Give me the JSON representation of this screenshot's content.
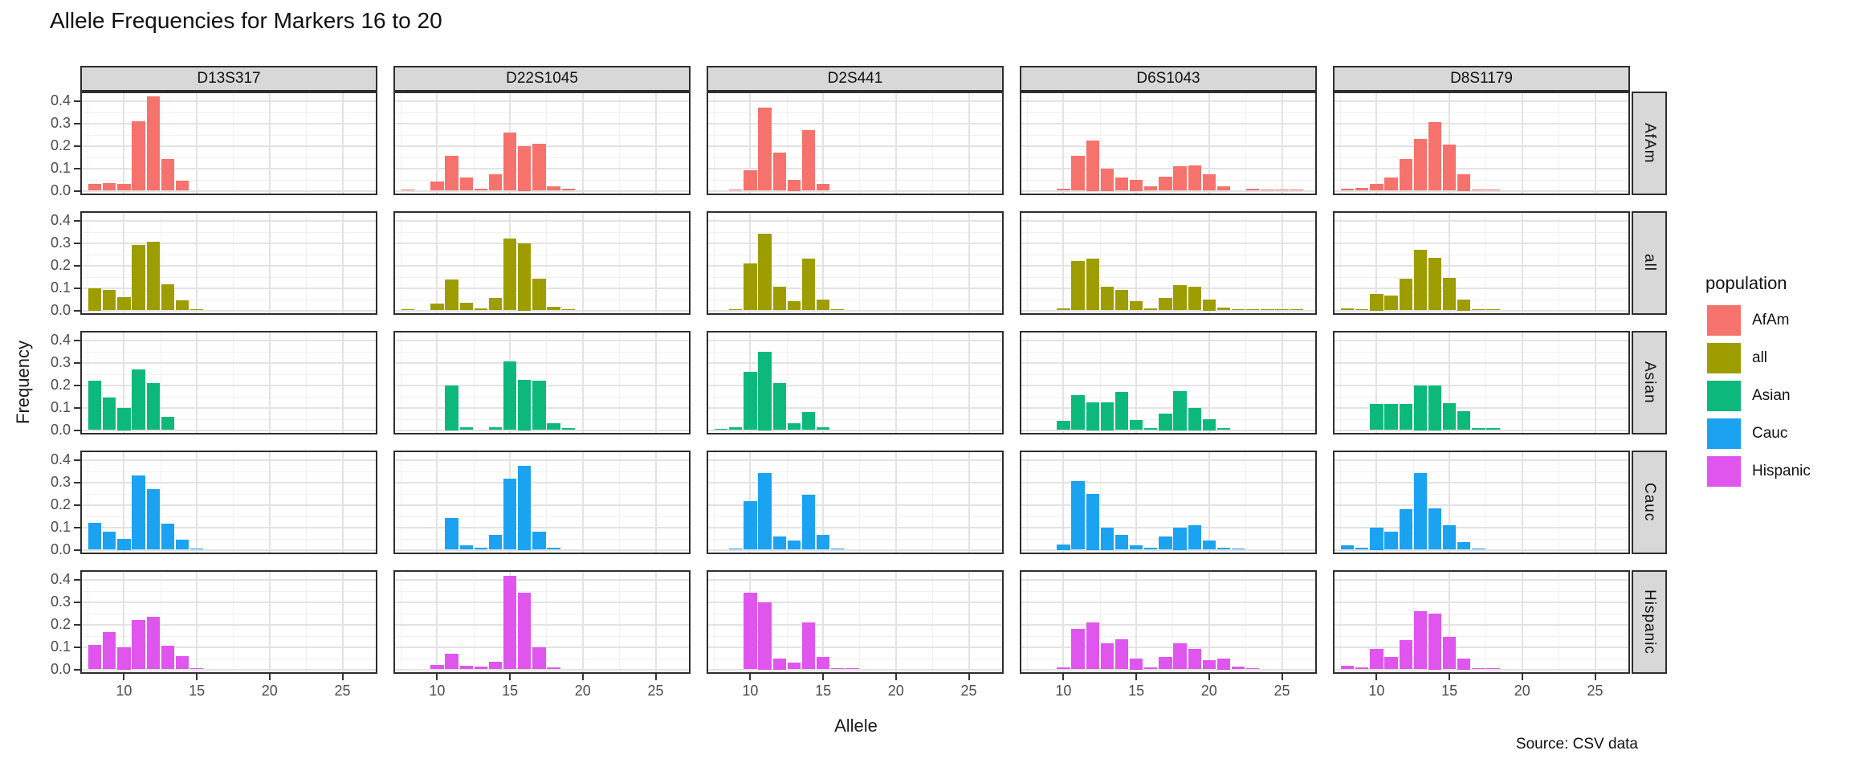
{
  "title": "Allele Frequencies for Markers 16 to 20",
  "source_note": "Source: CSV data",
  "axes": {
    "x_label": "Allele",
    "y_label": "Frequency",
    "x_tick_labels": [
      "10",
      "15",
      "20",
      "25"
    ],
    "y_tick_labels": [
      "0.0",
      "0.1",
      "0.2",
      "0.3",
      "0.4"
    ]
  },
  "legend": {
    "title": "population",
    "entries": [
      {
        "label": "AfAm",
        "color": "#F6726C"
      },
      {
        "label": "all",
        "color": "#9E9D00"
      },
      {
        "label": "Asian",
        "color": "#0DB97A"
      },
      {
        "label": "Cauc",
        "color": "#1BA3F2"
      },
      {
        "label": "Hispanic",
        "color": "#E055ED"
      }
    ]
  },
  "chart_data": {
    "type": "bar",
    "title": "Allele Frequencies for Markers 16 to 20",
    "xlabel": "Allele",
    "ylabel": "Frequency",
    "xlim": [
      7,
      27.4
    ],
    "ylim": [
      0,
      0.44
    ],
    "x_major_ticks": [
      10,
      15,
      20,
      25
    ],
    "x_minor_ticks": [
      7.5,
      12.5,
      17.5,
      22.5
    ],
    "y_major_ticks": [
      0,
      0.1,
      0.2,
      0.3,
      0.4
    ],
    "y_minor_ticks": [
      0.05,
      0.15,
      0.25,
      0.35
    ],
    "grid": true,
    "legend_position": "right",
    "facet_columns": [
      "D13S317",
      "D22S1045",
      "D2S441",
      "D6S1043",
      "D8S1179"
    ],
    "facet_rows": [
      "AfAm",
      "all",
      "Asian",
      "Cauc",
      "Hispanic"
    ],
    "facets": [
      {
        "marker": "D13S317",
        "population": "AfAm",
        "bars": [
          [
            8,
            0.03
          ],
          [
            9,
            0.033
          ],
          [
            10,
            0.03
          ],
          [
            11,
            0.31
          ],
          [
            12,
            0.42
          ],
          [
            13,
            0.14
          ],
          [
            14,
            0.045
          ]
        ]
      },
      {
        "marker": "D22S1045",
        "population": "AfAm",
        "bars": [
          [
            8,
            0.006
          ],
          [
            10,
            0.04
          ],
          [
            11,
            0.155
          ],
          [
            12,
            0.058
          ],
          [
            13,
            0.01
          ],
          [
            14,
            0.072
          ],
          [
            15,
            0.26
          ],
          [
            16,
            0.2
          ],
          [
            17,
            0.21
          ],
          [
            18,
            0.02
          ],
          [
            19,
            0.01
          ]
        ]
      },
      {
        "marker": "D2S441",
        "population": "AfAm",
        "bars": [
          [
            9,
            0.006
          ],
          [
            10,
            0.09
          ],
          [
            11,
            0.37
          ],
          [
            12,
            0.17
          ],
          [
            13,
            0.05
          ],
          [
            14,
            0.27
          ],
          [
            15,
            0.03
          ]
        ]
      },
      {
        "marker": "D6S1043",
        "population": "AfAm",
        "bars": [
          [
            10,
            0.008
          ],
          [
            11,
            0.155
          ],
          [
            12,
            0.225
          ],
          [
            13,
            0.1
          ],
          [
            14,
            0.06
          ],
          [
            15,
            0.05
          ],
          [
            16,
            0.02
          ],
          [
            17,
            0.062
          ],
          [
            18,
            0.108
          ],
          [
            19,
            0.114
          ],
          [
            20,
            0.073
          ],
          [
            21,
            0.02
          ],
          [
            23,
            0.008
          ],
          [
            24,
            0.005
          ],
          [
            25,
            0.004
          ],
          [
            26,
            0.004
          ]
        ]
      },
      {
        "marker": "D8S1179",
        "population": "AfAm",
        "bars": [
          [
            8,
            0.01
          ],
          [
            9,
            0.012
          ],
          [
            10,
            0.03
          ],
          [
            11,
            0.06
          ],
          [
            12,
            0.14
          ],
          [
            13,
            0.23
          ],
          [
            14,
            0.305
          ],
          [
            15,
            0.205
          ],
          [
            16,
            0.075
          ],
          [
            17,
            0.006
          ],
          [
            18,
            0.004
          ]
        ]
      },
      {
        "marker": "D13S317",
        "population": "all",
        "bars": [
          [
            8,
            0.1
          ],
          [
            9,
            0.09
          ],
          [
            10,
            0.06
          ],
          [
            11,
            0.29
          ],
          [
            12,
            0.305
          ],
          [
            13,
            0.115
          ],
          [
            14,
            0.045
          ],
          [
            15,
            0.004
          ]
        ]
      },
      {
        "marker": "D22S1045",
        "population": "all",
        "bars": [
          [
            8,
            0.004
          ],
          [
            10,
            0.03
          ],
          [
            11,
            0.138
          ],
          [
            12,
            0.035
          ],
          [
            13,
            0.01
          ],
          [
            14,
            0.055
          ],
          [
            15,
            0.32
          ],
          [
            16,
            0.3
          ],
          [
            17,
            0.14
          ],
          [
            18,
            0.015
          ],
          [
            19,
            0.007
          ]
        ]
      },
      {
        "marker": "D2S441",
        "population": "all",
        "bars": [
          [
            9,
            0.006
          ],
          [
            10,
            0.21
          ],
          [
            11,
            0.34
          ],
          [
            12,
            0.105
          ],
          [
            13,
            0.04
          ],
          [
            14,
            0.23
          ],
          [
            15,
            0.048
          ],
          [
            16,
            0.004
          ]
        ]
      },
      {
        "marker": "D6S1043",
        "population": "all",
        "bars": [
          [
            10,
            0.01
          ],
          [
            11,
            0.22
          ],
          [
            12,
            0.23
          ],
          [
            13,
            0.105
          ],
          [
            14,
            0.09
          ],
          [
            15,
            0.042
          ],
          [
            16,
            0.01
          ],
          [
            17,
            0.055
          ],
          [
            18,
            0.112
          ],
          [
            19,
            0.105
          ],
          [
            20,
            0.05
          ],
          [
            21,
            0.012
          ],
          [
            22,
            0.004
          ],
          [
            23,
            0.004
          ],
          [
            24,
            0.002
          ],
          [
            25,
            0.002
          ],
          [
            26,
            0.002
          ]
        ]
      },
      {
        "marker": "D8S1179",
        "population": "all",
        "bars": [
          [
            8,
            0.01
          ],
          [
            9,
            0.006
          ],
          [
            10,
            0.075
          ],
          [
            11,
            0.065
          ],
          [
            12,
            0.14
          ],
          [
            13,
            0.27
          ],
          [
            14,
            0.235
          ],
          [
            15,
            0.145
          ],
          [
            16,
            0.05
          ],
          [
            17,
            0.006
          ],
          [
            18,
            0.003
          ]
        ]
      },
      {
        "marker": "D13S317",
        "population": "Asian",
        "bars": [
          [
            8,
            0.22
          ],
          [
            9,
            0.145
          ],
          [
            10,
            0.1
          ],
          [
            11,
            0.27
          ],
          [
            12,
            0.21
          ],
          [
            13,
            0.06
          ]
        ]
      },
      {
        "marker": "D22S1045",
        "population": "Asian",
        "bars": [
          [
            11,
            0.2
          ],
          [
            12,
            0.012
          ],
          [
            14,
            0.012
          ],
          [
            15,
            0.305
          ],
          [
            16,
            0.225
          ],
          [
            17,
            0.22
          ],
          [
            18,
            0.032
          ],
          [
            19,
            0.01
          ]
        ]
      },
      {
        "marker": "D2S441",
        "population": "Asian",
        "bars": [
          [
            8,
            0.005
          ],
          [
            9,
            0.012
          ],
          [
            10,
            0.26
          ],
          [
            11,
            0.35
          ],
          [
            12,
            0.21
          ],
          [
            13,
            0.03
          ],
          [
            14,
            0.08
          ],
          [
            15,
            0.012
          ]
        ]
      },
      {
        "marker": "D6S1043",
        "population": "Asian",
        "bars": [
          [
            10,
            0.04
          ],
          [
            11,
            0.155
          ],
          [
            12,
            0.125
          ],
          [
            13,
            0.125
          ],
          [
            14,
            0.17
          ],
          [
            15,
            0.045
          ],
          [
            16,
            0.008
          ],
          [
            17,
            0.075
          ],
          [
            18,
            0.175
          ],
          [
            19,
            0.1
          ],
          [
            20,
            0.05
          ],
          [
            21,
            0.008
          ]
        ]
      },
      {
        "marker": "D8S1179",
        "population": "Asian",
        "bars": [
          [
            10,
            0.115
          ],
          [
            11,
            0.115
          ],
          [
            12,
            0.115
          ],
          [
            13,
            0.2
          ],
          [
            14,
            0.2
          ],
          [
            15,
            0.12
          ],
          [
            16,
            0.085
          ],
          [
            17,
            0.01
          ],
          [
            18,
            0.01
          ]
        ]
      },
      {
        "marker": "D13S317",
        "population": "Cauc",
        "bars": [
          [
            8,
            0.12
          ],
          [
            9,
            0.08
          ],
          [
            10,
            0.05
          ],
          [
            11,
            0.33
          ],
          [
            12,
            0.27
          ],
          [
            13,
            0.115
          ],
          [
            14,
            0.045
          ],
          [
            15,
            0.004
          ]
        ]
      },
      {
        "marker": "D22S1045",
        "population": "Cauc",
        "bars": [
          [
            11,
            0.14
          ],
          [
            12,
            0.018
          ],
          [
            13,
            0.01
          ],
          [
            14,
            0.065
          ],
          [
            15,
            0.315
          ],
          [
            16,
            0.375
          ],
          [
            17,
            0.082
          ],
          [
            18,
            0.01
          ]
        ]
      },
      {
        "marker": "D2S441",
        "population": "Cauc",
        "bars": [
          [
            9,
            0.006
          ],
          [
            10,
            0.215
          ],
          [
            11,
            0.34
          ],
          [
            12,
            0.06
          ],
          [
            13,
            0.04
          ],
          [
            14,
            0.245
          ],
          [
            15,
            0.065
          ],
          [
            16,
            0.004
          ]
        ]
      },
      {
        "marker": "D6S1043",
        "population": "Cauc",
        "bars": [
          [
            10,
            0.025
          ],
          [
            11,
            0.305
          ],
          [
            12,
            0.25
          ],
          [
            13,
            0.1
          ],
          [
            14,
            0.065
          ],
          [
            15,
            0.02
          ],
          [
            16,
            0.008
          ],
          [
            17,
            0.06
          ],
          [
            18,
            0.1
          ],
          [
            19,
            0.11
          ],
          [
            20,
            0.04
          ],
          [
            21,
            0.01
          ],
          [
            22,
            0.005
          ]
        ]
      },
      {
        "marker": "D8S1179",
        "population": "Cauc",
        "bars": [
          [
            8,
            0.02
          ],
          [
            9,
            0.01
          ],
          [
            10,
            0.1
          ],
          [
            11,
            0.08
          ],
          [
            12,
            0.18
          ],
          [
            13,
            0.34
          ],
          [
            14,
            0.185
          ],
          [
            15,
            0.11
          ],
          [
            16,
            0.035
          ],
          [
            17,
            0.003
          ]
        ]
      },
      {
        "marker": "D13S317",
        "population": "Hispanic",
        "bars": [
          [
            8,
            0.11
          ],
          [
            9,
            0.165
          ],
          [
            10,
            0.1
          ],
          [
            11,
            0.22
          ],
          [
            12,
            0.235
          ],
          [
            13,
            0.105
          ],
          [
            14,
            0.06
          ],
          [
            15,
            0.005
          ]
        ]
      },
      {
        "marker": "D22S1045",
        "population": "Hispanic",
        "bars": [
          [
            10,
            0.02
          ],
          [
            11,
            0.068
          ],
          [
            12,
            0.015
          ],
          [
            13,
            0.012
          ],
          [
            14,
            0.033
          ],
          [
            15,
            0.415
          ],
          [
            16,
            0.34
          ],
          [
            17,
            0.098
          ],
          [
            18,
            0.008
          ]
        ]
      },
      {
        "marker": "D2S441",
        "population": "Hispanic",
        "bars": [
          [
            10,
            0.34
          ],
          [
            11,
            0.3
          ],
          [
            12,
            0.05
          ],
          [
            13,
            0.03
          ],
          [
            14,
            0.21
          ],
          [
            15,
            0.055
          ],
          [
            16,
            0.006
          ],
          [
            17,
            0.005
          ]
        ]
      },
      {
        "marker": "D6S1043",
        "population": "Hispanic",
        "bars": [
          [
            10,
            0.01
          ],
          [
            11,
            0.18
          ],
          [
            12,
            0.21
          ],
          [
            13,
            0.115
          ],
          [
            14,
            0.135
          ],
          [
            15,
            0.05
          ],
          [
            16,
            0.01
          ],
          [
            17,
            0.055
          ],
          [
            18,
            0.115
          ],
          [
            19,
            0.09
          ],
          [
            20,
            0.04
          ],
          [
            21,
            0.05
          ],
          [
            22,
            0.013
          ],
          [
            23,
            0.005
          ]
        ]
      },
      {
        "marker": "D8S1179",
        "population": "Hispanic",
        "bars": [
          [
            8,
            0.015
          ],
          [
            9,
            0.01
          ],
          [
            10,
            0.09
          ],
          [
            11,
            0.055
          ],
          [
            12,
            0.13
          ],
          [
            13,
            0.26
          ],
          [
            14,
            0.25
          ],
          [
            15,
            0.145
          ],
          [
            16,
            0.05
          ],
          [
            17,
            0.005
          ],
          [
            18,
            0.004
          ]
        ]
      }
    ]
  }
}
